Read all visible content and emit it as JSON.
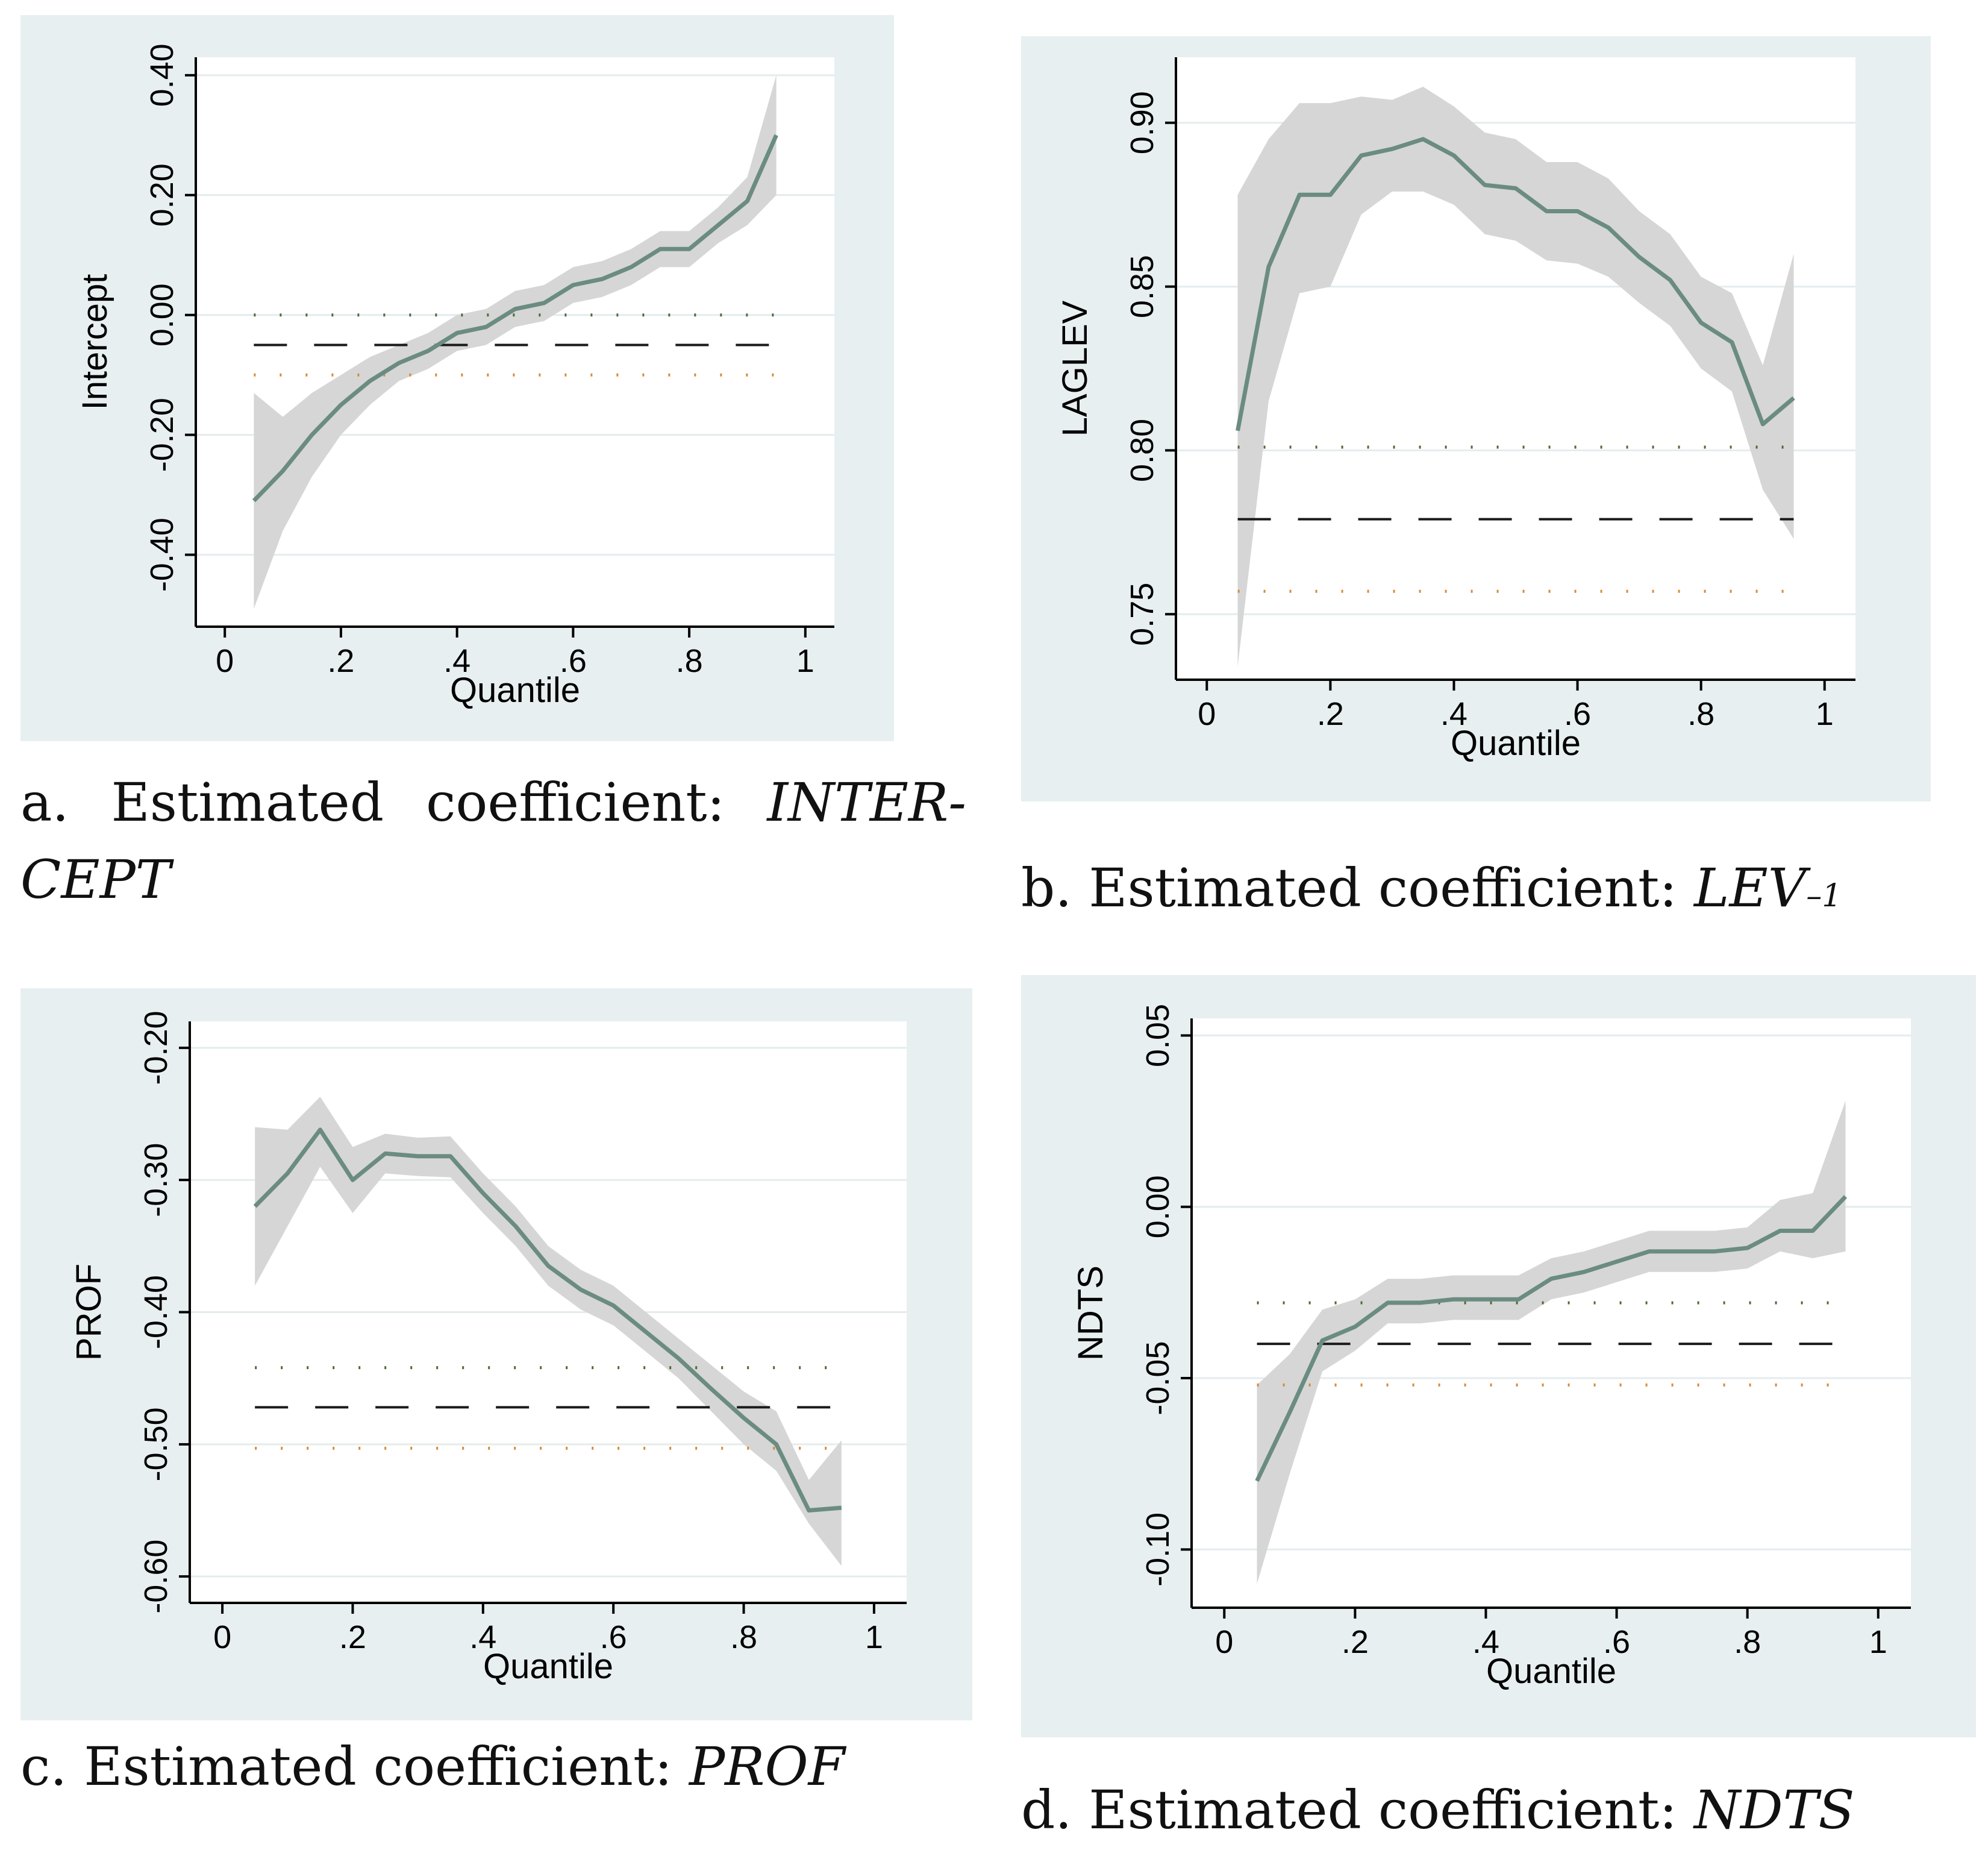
{
  "colors": {
    "panel_bg": "#e8eff1",
    "plot_bg": "#ffffff",
    "grid": "#e4ecee",
    "band": "#d6d6d6",
    "line": "#6b8c80",
    "dash": "#1a1a1a",
    "dot_green": "#4d6b3a",
    "dot_orange": "#d98a3a",
    "axis": "#000000"
  },
  "captions": [
    {
      "prefix": "a.  Estimated  coefficient:  ",
      "var": "INTER-CEPT",
      "sub": ""
    },
    {
      "prefix": "b. Estimated coefficient: ",
      "var": "LEV",
      "sub": "–1"
    },
    {
      "prefix": "c. Estimated coefficient: ",
      "var": "PROF",
      "sub": ""
    },
    {
      "prefix": "d. Estimated coefficient: ",
      "var": "NDTS",
      "sub": ""
    }
  ],
  "chart_data": [
    {
      "id": "a",
      "type": "line",
      "title": "",
      "xlabel": "Quantile",
      "ylabel": "Intercept",
      "xlim": [
        -0.05,
        1.05
      ],
      "ylim": [
        -0.52,
        0.43
      ],
      "xticks": [
        {
          "v": 0,
          "label": "0"
        },
        {
          "v": 0.2,
          "label": ".2"
        },
        {
          "v": 0.4,
          "label": ".4"
        },
        {
          "v": 0.6,
          "label": ".6"
        },
        {
          "v": 0.8,
          "label": ".8"
        },
        {
          "v": 1,
          "label": "1"
        }
      ],
      "yticks": [
        {
          "v": 0.4,
          "label": "0.40"
        },
        {
          "v": 0.2,
          "label": "0.20"
        },
        {
          "v": 0,
          "label": "0.00"
        },
        {
          "v": -0.2,
          "label": "-0.20"
        },
        {
          "v": -0.4,
          "label": "-0.40"
        }
      ],
      "grid": true,
      "x": [
        0.05,
        0.1,
        0.15,
        0.2,
        0.25,
        0.3,
        0.35,
        0.4,
        0.45,
        0.5,
        0.55,
        0.6,
        0.65,
        0.7,
        0.75,
        0.8,
        0.85,
        0.9,
        0.95
      ],
      "series": [
        {
          "name": "Quantile regression estimate",
          "values": [
            -0.31,
            -0.26,
            -0.2,
            -0.15,
            -0.11,
            -0.08,
            -0.06,
            -0.03,
            -0.02,
            0.01,
            0.02,
            0.05,
            0.06,
            0.08,
            0.11,
            0.11,
            0.15,
            0.19,
            0.3
          ]
        },
        {
          "name": "Confidence band lower",
          "values": [
            -0.49,
            -0.36,
            -0.27,
            -0.2,
            -0.15,
            -0.11,
            -0.09,
            -0.06,
            -0.05,
            -0.02,
            -0.01,
            0.02,
            0.03,
            0.05,
            0.08,
            0.08,
            0.12,
            0.15,
            0.2
          ]
        },
        {
          "name": "Confidence band upper",
          "values": [
            -0.13,
            -0.17,
            -0.13,
            -0.1,
            -0.07,
            -0.05,
            -0.03,
            0.0,
            0.01,
            0.04,
            0.05,
            0.08,
            0.09,
            0.11,
            0.14,
            0.14,
            0.18,
            0.23,
            0.4
          ]
        }
      ],
      "ols": {
        "estimate": -0.05,
        "ci_lower": -0.1,
        "ci_upper": 0.0
      }
    },
    {
      "id": "b",
      "type": "line",
      "title": "",
      "xlabel": "Quantile",
      "ylabel": "LAGLEV",
      "xlim": [
        -0.05,
        1.05
      ],
      "ylim": [
        0.73,
        0.92
      ],
      "xticks": [
        {
          "v": 0,
          "label": "0"
        },
        {
          "v": 0.2,
          "label": ".2"
        },
        {
          "v": 0.4,
          "label": ".4"
        },
        {
          "v": 0.6,
          "label": ".6"
        },
        {
          "v": 0.8,
          "label": ".8"
        },
        {
          "v": 1,
          "label": "1"
        }
      ],
      "yticks": [
        {
          "v": 0.9,
          "label": "0.90"
        },
        {
          "v": 0.85,
          "label": "0.85"
        },
        {
          "v": 0.8,
          "label": "0.80"
        },
        {
          "v": 0.75,
          "label": "0.75"
        }
      ],
      "grid": true,
      "x": [
        0.05,
        0.1,
        0.15,
        0.2,
        0.25,
        0.3,
        0.35,
        0.4,
        0.45,
        0.5,
        0.55,
        0.6,
        0.65,
        0.7,
        0.75,
        0.8,
        0.85,
        0.9,
        0.95
      ],
      "series": [
        {
          "name": "Quantile regression estimate",
          "values": [
            0.806,
            0.856,
            0.878,
            0.878,
            0.89,
            0.892,
            0.895,
            0.89,
            0.881,
            0.88,
            0.873,
            0.873,
            0.868,
            0.859,
            0.852,
            0.839,
            0.833,
            0.808,
            0.816
          ]
        },
        {
          "name": "Confidence band lower",
          "values": [
            0.734,
            0.815,
            0.848,
            0.85,
            0.872,
            0.879,
            0.879,
            0.875,
            0.866,
            0.864,
            0.858,
            0.857,
            0.853,
            0.845,
            0.838,
            0.825,
            0.818,
            0.788,
            0.773
          ]
        },
        {
          "name": "Confidence band upper",
          "values": [
            0.878,
            0.895,
            0.906,
            0.906,
            0.908,
            0.907,
            0.911,
            0.905,
            0.897,
            0.895,
            0.888,
            0.888,
            0.883,
            0.873,
            0.866,
            0.853,
            0.848,
            0.826,
            0.86
          ]
        }
      ],
      "ols": {
        "estimate": 0.779,
        "ci_lower": 0.757,
        "ci_upper": 0.801
      }
    },
    {
      "id": "c",
      "type": "line",
      "title": "",
      "xlabel": "Quantile",
      "ylabel": "PROF",
      "xlim": [
        -0.05,
        1.05
      ],
      "ylim": [
        -0.62,
        -0.18
      ],
      "xticks": [
        {
          "v": 0,
          "label": "0"
        },
        {
          "v": 0.2,
          "label": ".2"
        },
        {
          "v": 0.4,
          "label": ".4"
        },
        {
          "v": 0.6,
          "label": ".6"
        },
        {
          "v": 0.8,
          "label": ".8"
        },
        {
          "v": 1,
          "label": "1"
        }
      ],
      "yticks": [
        {
          "v": -0.2,
          "label": "-0.20"
        },
        {
          "v": -0.3,
          "label": "-0.30"
        },
        {
          "v": -0.4,
          "label": "-0.40"
        },
        {
          "v": -0.5,
          "label": "-0.50"
        },
        {
          "v": -0.6,
          "label": "-0.60"
        }
      ],
      "grid": true,
      "x": [
        0.05,
        0.1,
        0.15,
        0.2,
        0.25,
        0.3,
        0.35,
        0.4,
        0.45,
        0.5,
        0.55,
        0.6,
        0.65,
        0.7,
        0.75,
        0.8,
        0.85,
        0.9,
        0.95
      ],
      "series": [
        {
          "name": "Quantile regression estimate",
          "values": [
            -0.32,
            -0.295,
            -0.262,
            -0.3,
            -0.28,
            -0.282,
            -0.282,
            -0.31,
            -0.335,
            -0.365,
            -0.383,
            -0.395,
            -0.415,
            -0.435,
            -0.458,
            -0.48,
            -0.5,
            -0.55,
            -0.548
          ]
        },
        {
          "name": "Confidence band lower",
          "values": [
            -0.38,
            -0.335,
            -0.29,
            -0.325,
            -0.295,
            -0.297,
            -0.298,
            -0.325,
            -0.35,
            -0.38,
            -0.398,
            -0.41,
            -0.43,
            -0.45,
            -0.475,
            -0.5,
            -0.52,
            -0.56,
            -0.592
          ]
        },
        {
          "name": "Confidence band upper",
          "values": [
            -0.26,
            -0.262,
            -0.237,
            -0.275,
            -0.265,
            -0.268,
            -0.267,
            -0.295,
            -0.32,
            -0.35,
            -0.368,
            -0.38,
            -0.4,
            -0.42,
            -0.44,
            -0.46,
            -0.475,
            -0.527,
            -0.497
          ]
        }
      ],
      "ols": {
        "estimate": -0.472,
        "ci_lower": -0.503,
        "ci_upper": -0.442
      }
    },
    {
      "id": "d",
      "type": "line",
      "title": "",
      "xlabel": "Quantile",
      "ylabel": "NDTS",
      "xlim": [
        -0.05,
        1.05
      ],
      "ylim": [
        -0.117,
        0.055
      ],
      "xticks": [
        {
          "v": 0,
          "label": "0"
        },
        {
          "v": 0.2,
          "label": ".2"
        },
        {
          "v": 0.4,
          "label": ".4"
        },
        {
          "v": 0.6,
          "label": ".6"
        },
        {
          "v": 0.8,
          "label": ".8"
        },
        {
          "v": 1,
          "label": "1"
        }
      ],
      "yticks": [
        {
          "v": 0.05,
          "label": "0.05"
        },
        {
          "v": 0.0,
          "label": "0.00"
        },
        {
          "v": -0.05,
          "label": "-0.05"
        },
        {
          "v": -0.1,
          "label": "-0.10"
        }
      ],
      "grid": true,
      "x": [
        0.05,
        0.1,
        0.15,
        0.2,
        0.25,
        0.3,
        0.35,
        0.4,
        0.45,
        0.5,
        0.55,
        0.6,
        0.65,
        0.7,
        0.75,
        0.8,
        0.85,
        0.9,
        0.95
      ],
      "series": [
        {
          "name": "Quantile regression estimate",
          "values": [
            -0.08,
            -0.06,
            -0.039,
            -0.035,
            -0.028,
            -0.028,
            -0.027,
            -0.027,
            -0.027,
            -0.021,
            -0.019,
            -0.016,
            -0.013,
            -0.013,
            -0.013,
            -0.012,
            -0.007,
            -0.007,
            0.003
          ]
        },
        {
          "name": "Confidence band lower",
          "values": [
            -0.11,
            -0.078,
            -0.048,
            -0.042,
            -0.034,
            -0.034,
            -0.033,
            -0.033,
            -0.033,
            -0.027,
            -0.025,
            -0.022,
            -0.019,
            -0.019,
            -0.019,
            -0.018,
            -0.013,
            -0.015,
            -0.013
          ]
        },
        {
          "name": "Confidence band upper",
          "values": [
            -0.052,
            -0.043,
            -0.03,
            -0.027,
            -0.021,
            -0.021,
            -0.02,
            -0.02,
            -0.02,
            -0.015,
            -0.013,
            -0.01,
            -0.007,
            -0.007,
            -0.007,
            -0.006,
            0.002,
            0.004,
            0.031
          ]
        }
      ],
      "ols": {
        "estimate": -0.04,
        "ci_lower": -0.052,
        "ci_upper": -0.028
      }
    }
  ]
}
